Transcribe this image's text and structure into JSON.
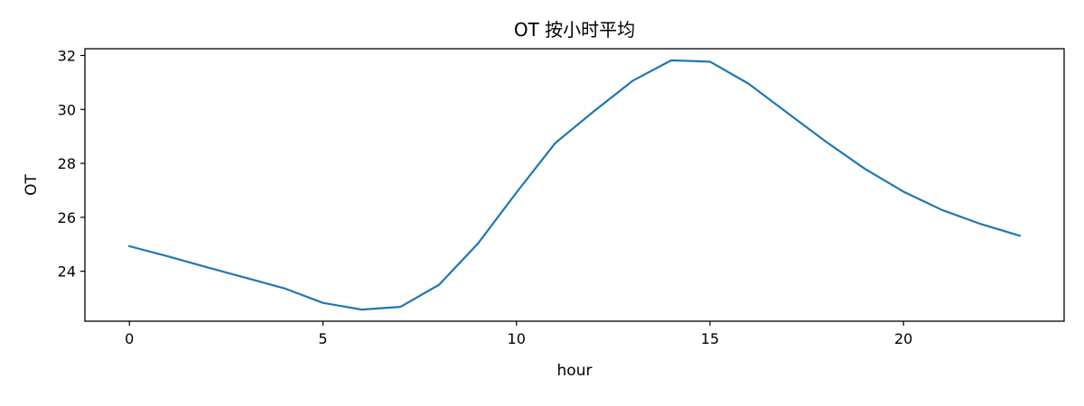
{
  "chart_data": {
    "type": "line",
    "title": "OT 按小时平均",
    "xlabel": "hour",
    "ylabel": "OT",
    "xlim": [
      -1.15,
      24.15
    ],
    "ylim": [
      22.15,
      32.25
    ],
    "xticks": [
      "0",
      "5",
      "10",
      "15",
      "20"
    ],
    "yticks": [
      "24",
      "26",
      "28",
      "30",
      "32"
    ],
    "grid": false,
    "series": [
      {
        "name": "OT",
        "color": "#1f77b4",
        "x": [
          0,
          1,
          2,
          3,
          4,
          5,
          6,
          7,
          8,
          9,
          10,
          11,
          12,
          13,
          14,
          15,
          16,
          17,
          18,
          19,
          20,
          21,
          22,
          23
        ],
        "y": [
          24.93,
          24.55,
          24.15,
          23.76,
          23.37,
          22.83,
          22.58,
          22.68,
          23.5,
          25.02,
          26.92,
          28.75,
          29.93,
          31.06,
          31.82,
          31.77,
          30.95,
          29.87,
          28.8,
          27.8,
          26.95,
          26.27,
          25.75,
          25.32
        ]
      }
    ]
  }
}
